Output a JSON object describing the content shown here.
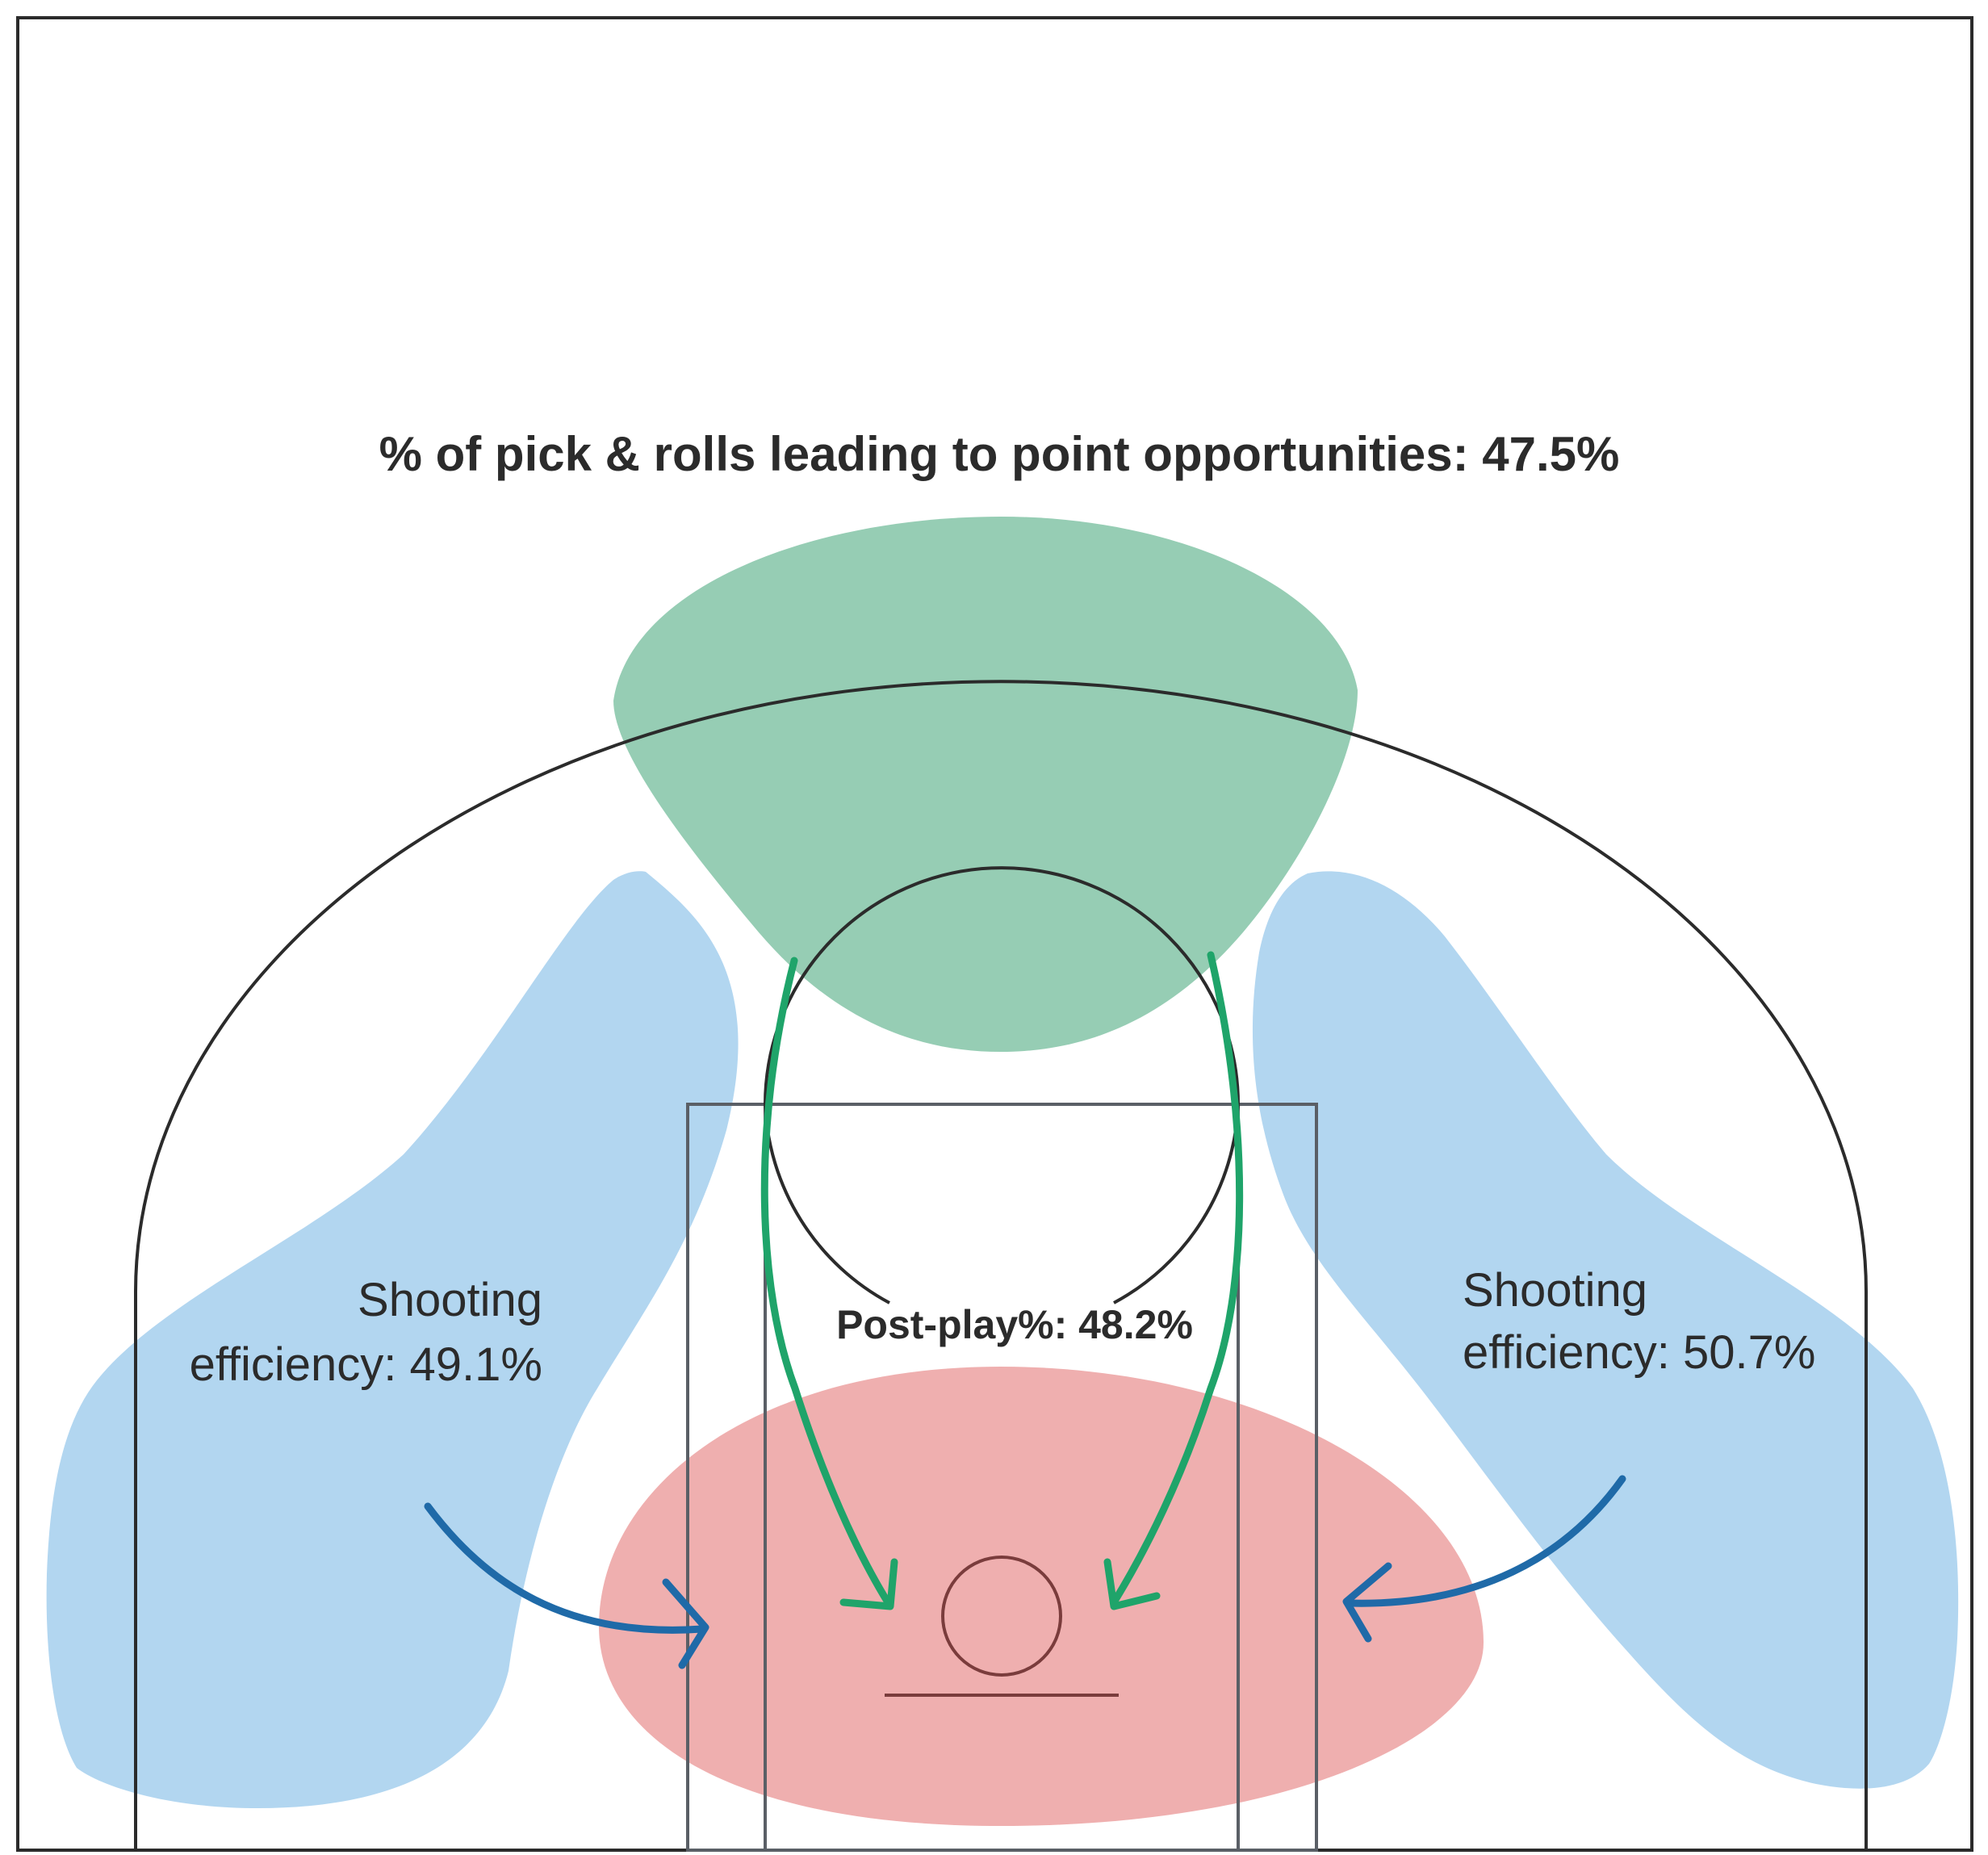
{
  "headline": "% of pick & rolls leading to point opportunities: 47.5%",
  "left_zone": {
    "line1": "Shooting",
    "line2": "efficiency: 49.1%"
  },
  "right_zone": {
    "line1": "Shooting",
    "line2": "efficiency: 50.7%"
  },
  "post_play": "Post-play%: 48.2%",
  "colors": {
    "court_line": "#2b2b2b",
    "paint_line": "#5a5f66",
    "pick_and_roll_zone": "#96cdb4",
    "shooting_zone": "#b2d6f0",
    "post_play_zone": "#efafaf",
    "pick_and_roll_arrow": "#1fa46a",
    "shooting_arrow": "#1f6aa8",
    "text": "#2b2b2b"
  }
}
